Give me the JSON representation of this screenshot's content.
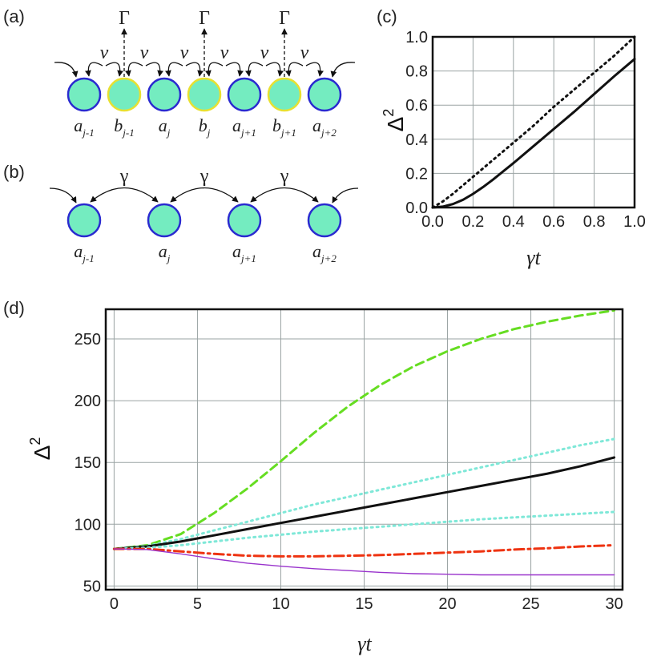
{
  "panel_labels": {
    "a": "(a)",
    "b": "(b)",
    "c": "(c)",
    "d": "(d)"
  },
  "diagram_a": {
    "hopping_label": "v",
    "loss_label": "Γ",
    "sites": [
      {
        "kind": "a",
        "base": "a",
        "sub": "j-1"
      },
      {
        "kind": "b",
        "base": "b",
        "sub": "j-1"
      },
      {
        "kind": "a",
        "base": "a",
        "sub": "j"
      },
      {
        "kind": "b",
        "base": "b",
        "sub": "j"
      },
      {
        "kind": "a",
        "base": "a",
        "sub": "j+1"
      },
      {
        "kind": "b",
        "base": "b",
        "sub": "j+1"
      },
      {
        "kind": "a",
        "base": "a",
        "sub": "j+2"
      }
    ]
  },
  "diagram_b": {
    "coupling_label": "γ",
    "sites": [
      {
        "base": "a",
        "sub": "j-1"
      },
      {
        "base": "a",
        "sub": "j"
      },
      {
        "base": "a",
        "sub": "j+1"
      },
      {
        "base": "a",
        "sub": "j+2"
      }
    ]
  },
  "colors": {
    "site_fill": "#74ecc0",
    "a_site_stroke": "#2a2ad0",
    "b_site_stroke": "#e8e030",
    "green_dashed": "#66dd22",
    "cyan_dotted": "#7fe8d8",
    "red_dashdot": "#ee3311",
    "purple_thin": "#9933cc",
    "black": "#111111"
  },
  "chart_data": [
    {
      "panel": "c",
      "type": "line",
      "xlabel": "γt",
      "ylabel": "Δ²",
      "xlim": [
        0,
        1
      ],
      "ylim": [
        0,
        1
      ],
      "xticks": [
        "0.0",
        "0.2",
        "0.4",
        "0.6",
        "0.8",
        "1.0"
      ],
      "yticks": [
        "0.0",
        "0.2",
        "0.4",
        "0.6",
        "0.8",
        "1.0"
      ],
      "grid": true,
      "series": [
        {
          "style": "solid",
          "color": "#111111",
          "x": [
            0,
            0.05,
            0.1,
            0.15,
            0.2,
            0.25,
            0.3,
            0.4,
            0.5,
            0.6,
            0.7,
            0.8,
            0.9,
            1.0
          ],
          "y": [
            0,
            0.005,
            0.02,
            0.045,
            0.08,
            0.12,
            0.165,
            0.26,
            0.36,
            0.46,
            0.56,
            0.665,
            0.77,
            0.87
          ]
        },
        {
          "style": "dotted",
          "color": "#111111",
          "x": [
            0,
            0.05,
            0.1,
            0.2,
            0.3,
            0.4,
            0.5,
            0.6,
            0.7,
            0.8,
            0.9,
            1.0
          ],
          "y": [
            0,
            0.035,
            0.08,
            0.18,
            0.28,
            0.38,
            0.48,
            0.59,
            0.69,
            0.79,
            0.89,
            1.0
          ]
        }
      ]
    },
    {
      "panel": "d",
      "type": "line",
      "xlabel": "γt",
      "ylabel": "Δ²",
      "xlim": [
        -0.5,
        30.5
      ],
      "ylim": [
        47,
        274
      ],
      "xticks": [
        "0",
        "5",
        "10",
        "15",
        "20",
        "25",
        "30"
      ],
      "yticks": [
        "50",
        "100",
        "150",
        "200",
        "250"
      ],
      "grid": true,
      "series": [
        {
          "style": "dashed",
          "color": "#66dd22",
          "x": [
            0,
            2,
            4,
            6,
            8,
            10,
            12,
            14,
            16,
            18,
            20,
            22,
            24,
            26,
            28,
            30
          ],
          "y": [
            80,
            83,
            92,
            109,
            129,
            151,
            174,
            195,
            213,
            228,
            240,
            250,
            258,
            264,
            269,
            273
          ]
        },
        {
          "style": "dotted",
          "color": "#7fe8d8",
          "x": [
            0,
            2,
            4,
            6,
            8,
            10,
            12,
            14,
            16,
            18,
            20,
            22,
            24,
            26,
            28,
            30
          ],
          "y": [
            80,
            82.5,
            88,
            95,
            102,
            109,
            116,
            122,
            128,
            134,
            140,
            146,
            152,
            158,
            164,
            169
          ]
        },
        {
          "style": "solid",
          "color": "#111111",
          "x": [
            0,
            2,
            4,
            6,
            8,
            10,
            12,
            14,
            16,
            18,
            20,
            22,
            24,
            26,
            28,
            30
          ],
          "y": [
            80,
            82,
            86,
            91,
            96,
            101,
            106,
            111,
            116,
            121,
            126,
            131,
            136,
            141,
            147,
            154
          ]
        },
        {
          "style": "dotted",
          "color": "#7fe8d8",
          "x": [
            0,
            2,
            4,
            6,
            8,
            10,
            12,
            14,
            16,
            18,
            20,
            22,
            24,
            26,
            28,
            30
          ],
          "y": [
            80,
            81,
            83,
            86,
            89,
            91.5,
            94,
            96,
            98,
            100,
            102,
            104,
            105.5,
            107,
            108.5,
            110
          ]
        },
        {
          "style": "dashdot",
          "color": "#ee3311",
          "x": [
            0,
            2,
            4,
            6,
            8,
            10,
            12,
            14,
            16,
            18,
            20,
            22,
            24,
            26,
            28,
            30
          ],
          "y": [
            80,
            80,
            78,
            76,
            74.5,
            74,
            74,
            74.5,
            75,
            76,
            77,
            78,
            79.5,
            80.5,
            82,
            83
          ]
        },
        {
          "style": "solid-thin",
          "color": "#9933cc",
          "x": [
            0,
            2,
            4,
            6,
            8,
            10,
            12,
            14,
            16,
            18,
            20,
            22,
            24,
            26,
            28,
            30
          ],
          "y": [
            80,
            79.5,
            76,
            72,
            68.5,
            66,
            64,
            62.5,
            61,
            60,
            59.5,
            59,
            59,
            59,
            59,
            59
          ]
        }
      ]
    }
  ]
}
